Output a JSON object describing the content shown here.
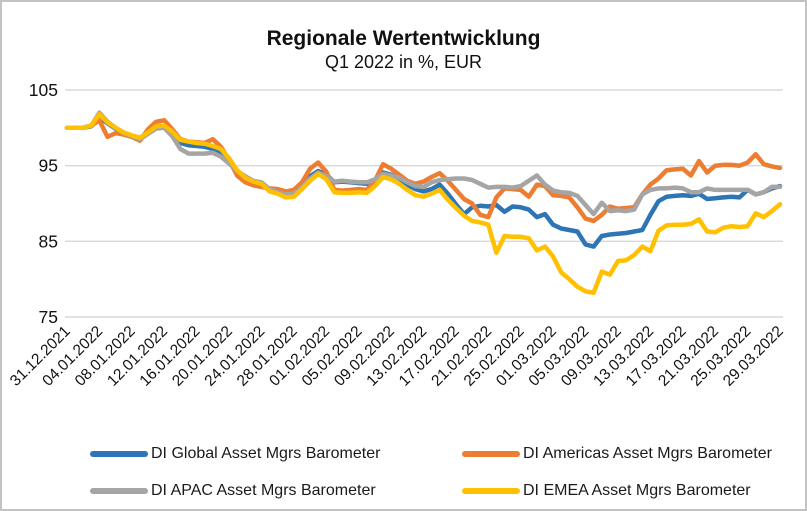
{
  "title": "Regionale Wertentwicklung",
  "subtitle": "Q1 2022 in %, EUR",
  "chart_data": {
    "type": "line",
    "title": "Regionale Wertentwicklung",
    "subtitle": "Q1 2022 in %, EUR",
    "ylim": [
      75,
      105
    ],
    "yticks": [
      105,
      95,
      85,
      75
    ],
    "grid": "horizontal-only",
    "legend_position": "bottom-two-columns",
    "x_tick_days": [
      0,
      4,
      8,
      12,
      16,
      20,
      24,
      28,
      32,
      36,
      40,
      44,
      48,
      52,
      56,
      60,
      64,
      68,
      72,
      76,
      80,
      84,
      88
    ],
    "x_tick_labels": [
      "31.12.2021",
      "04.01.2022",
      "08.01.2022",
      "12.01.2022",
      "16.01.2022",
      "20.01.2022",
      "24.01.2022",
      "28.01.2022",
      "01.02.2022",
      "05.02.2022",
      "09.02.2022",
      "13.02.2022",
      "17.02.2022",
      "21.02.2022",
      "25.02.2022",
      "01.03.2022",
      "05.03.2022",
      "09.03.2022",
      "13.03.2022",
      "17.03.2022",
      "21.03.2022",
      "25.03.2022",
      "29.03.2022"
    ],
    "series": [
      {
        "name": "DI Global Asset Mgrs Barometer",
        "color": "#2E75B6",
        "values": [
          100,
          100,
          100,
          100.2,
          101.4,
          100.6,
          99.9,
          99.2,
          98.9,
          98.5,
          99.3,
          100,
          100.1,
          99.3,
          98,
          97.7,
          97.6,
          97.5,
          97.2,
          96.5,
          95.5,
          94,
          93.2,
          92.7,
          92.5,
          91.9,
          91.7,
          91.3,
          91.4,
          92.3,
          93.6,
          94.3,
          93.8,
          92.8,
          92.9,
          92.8,
          92.7,
          92.6,
          93.2,
          94.1,
          93.8,
          93.3,
          92.5,
          91.9,
          91.6,
          91.9,
          92.5,
          91.3,
          89.9,
          88.6,
          89.5,
          89.7,
          89.6,
          89.8,
          88.9,
          89.6,
          89.5,
          89.2,
          88.2,
          88.6,
          87.2,
          86.7,
          86.5,
          86.3,
          84.6,
          84.3,
          85.7,
          85.9,
          86,
          86.1,
          86.3,
          86.5,
          88.5,
          90.3,
          90.9,
          91,
          91.1,
          91,
          91.3,
          90.6,
          90.7,
          90.8,
          90.9,
          90.8,
          91.8,
          91.2,
          91.5,
          92,
          92.3
        ]
      },
      {
        "name": "DI Americas Asset Mgrs Barometer",
        "color": "#ED7D31",
        "values": [
          100,
          100,
          100,
          100.3,
          101,
          98.8,
          99.3,
          99.1,
          98.8,
          98.3,
          99.8,
          100.8,
          101,
          99.8,
          98.5,
          98.2,
          98.1,
          98,
          98.5,
          97.5,
          95.8,
          93.7,
          92.8,
          92.4,
          92.2,
          92,
          91.9,
          91.6,
          91.8,
          92.8,
          94.6,
          95.4,
          94.2,
          91.8,
          91.7,
          91.8,
          91.9,
          91.8,
          93,
          95.2,
          94.6,
          93.8,
          93,
          92.6,
          92.9,
          93.5,
          94,
          93,
          91.8,
          90.6,
          90,
          88.5,
          88.2,
          90.8,
          92,
          91.9,
          91.8,
          90.9,
          92.5,
          92.3,
          91.1,
          91,
          90.8,
          89.5,
          88,
          87.7,
          88.5,
          89.6,
          89.3,
          89.4,
          89.5,
          91.2,
          92.5,
          93.3,
          94.4,
          94.5,
          94.6,
          93.7,
          95.6,
          94.1,
          95,
          95.1,
          95.1,
          95,
          95.4,
          96.5,
          95.2,
          94.9,
          94.7
        ]
      },
      {
        "name": "DI APAC Asset Mgrs Barometer",
        "color": "#A5A5A5",
        "values": [
          100,
          100,
          100,
          100.3,
          102,
          100.8,
          100,
          99.3,
          98.9,
          98.5,
          99.2,
          99.9,
          100,
          98.9,
          97.2,
          96.6,
          96.6,
          96.6,
          96.7,
          96.2,
          95.3,
          94.3,
          93.6,
          93,
          92.8,
          91.9,
          91.5,
          91.2,
          91.3,
          92.1,
          93.3,
          94.1,
          93.6,
          92.9,
          93,
          92.9,
          92.8,
          92.8,
          93.2,
          93.9,
          93.7,
          93.4,
          92.8,
          92.3,
          92.2,
          92.8,
          93.1,
          93.2,
          93.3,
          93.3,
          93.1,
          92.6,
          92.1,
          92.2,
          92.2,
          92.1,
          92.3,
          93,
          93.7,
          92.5,
          91.7,
          91.5,
          91.4,
          91,
          89.8,
          88.6,
          90.1,
          89,
          89.1,
          89,
          89.2,
          91.2,
          91.8,
          92,
          92,
          92.1,
          92,
          91.5,
          91.5,
          92,
          91.8,
          91.8,
          91.8,
          91.8,
          91.8,
          91.2,
          91.5,
          92.2,
          92.2
        ]
      },
      {
        "name": "DI EMEA Asset Mgrs Barometer",
        "color": "#FFC000",
        "values": [
          100,
          100,
          100,
          100.3,
          101.8,
          100.7,
          100,
          99.4,
          99,
          98.7,
          99.4,
          100.2,
          100.3,
          99.5,
          98.4,
          98.2,
          98,
          97.9,
          97.6,
          97.2,
          96,
          94.4,
          93.4,
          92.9,
          92.6,
          91.6,
          91.3,
          90.8,
          90.9,
          91.9,
          93,
          93.9,
          93.2,
          91.5,
          91.4,
          91.4,
          91.5,
          91.4,
          92.3,
          93.5,
          93.2,
          92.6,
          91.8,
          91.1,
          90.9,
          91.3,
          91.8,
          90.5,
          89.4,
          88.4,
          87.7,
          87.5,
          87.2,
          83.5,
          85.7,
          85.6,
          85.6,
          85.4,
          83.8,
          84.3,
          83,
          80.9,
          80,
          79,
          78.4,
          78.2,
          81,
          80.6,
          82.4,
          82.5,
          83.2,
          84.3,
          83.7,
          86.4,
          87.1,
          87.2,
          87.2,
          87.3,
          87.9,
          86.3,
          86.2,
          86.8,
          87,
          86.9,
          87,
          88.7,
          88.2,
          89,
          89.9
        ]
      }
    ]
  }
}
